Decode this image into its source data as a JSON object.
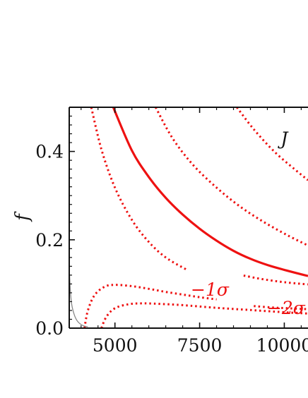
{
  "chart_data": {
    "type": "line",
    "xlabel": "",
    "ylabel": "f",
    "xlim": [
      3650,
      10700
    ],
    "ylim": [
      0,
      0.5
    ],
    "x_ticks": [
      5000,
      7500,
      10000
    ],
    "x_tick_labels": [
      "5000",
      "7500",
      "10000"
    ],
    "y_ticks": [
      0.0,
      0.2,
      0.4
    ],
    "y_tick_labels": [
      "0.0",
      "0.2",
      "0.4"
    ],
    "grid": false,
    "colors": {
      "contour": "#ee1111",
      "boundary": "#888888",
      "axis": "#111111"
    },
    "series": [
      {
        "style": "solid",
        "x": [
          4950,
          5500,
          6000,
          6500,
          7000,
          7500,
          8000,
          8500,
          9000,
          9500,
          10000,
          10700
        ],
        "y": [
          0.5,
          0.402,
          0.342,
          0.295,
          0.257,
          0.225,
          0.198,
          0.175,
          0.157,
          0.143,
          0.132,
          0.118
        ]
      },
      {
        "style": "dotted",
        "x": [
          4300,
          4600,
          5000,
          5500,
          6000,
          6500,
          7100
        ],
        "y": [
          0.5,
          0.405,
          0.318,
          0.245,
          0.195,
          0.16,
          0.133
        ]
      },
      {
        "style": "dotted",
        "x": [
          8800,
          9200,
          9600,
          10000,
          10400,
          10700
        ],
        "y": [
          0.119,
          0.113,
          0.108,
          0.104,
          0.101,
          0.099
        ]
      },
      {
        "style": "dotted",
        "x": [
          4100,
          4200,
          4400,
          4700,
          5000,
          5500,
          6000,
          6500,
          7000,
          7500,
          8000
        ],
        "y": [
          0.0,
          0.04,
          0.075,
          0.094,
          0.098,
          0.095,
          0.089,
          0.082,
          0.076,
          0.07,
          0.065
        ]
      },
      {
        "style": "dotted",
        "x": [
          9100,
          9600,
          10100,
          10700
        ],
        "y": [
          0.05,
          0.047,
          0.045,
          0.043
        ]
      },
      {
        "style": "dotted",
        "x": [
          4600,
          4750,
          5000,
          5400,
          5800,
          6300,
          7000,
          8000,
          9000,
          10000,
          10700
        ],
        "y": [
          0.0,
          0.026,
          0.045,
          0.054,
          0.056,
          0.055,
          0.052,
          0.046,
          0.041,
          0.036,
          0.033
        ]
      },
      {
        "style": "dotted",
        "x": [
          6200,
          6700,
          7300,
          8000,
          8700,
          9400,
          10100,
          10700
        ],
        "y": [
          0.5,
          0.43,
          0.37,
          0.318,
          0.275,
          0.24,
          0.21,
          0.187
        ]
      },
      {
        "style": "dotted",
        "x": [
          8600,
          9100,
          9700,
          10300,
          10700
        ],
        "y": [
          0.5,
          0.45,
          0.4,
          0.36,
          0.335
        ]
      },
      {
        "style": "thin",
        "x": [
          3650,
          3680,
          3720,
          3800,
          3900,
          4050,
          4200
        ],
        "y": [
          0.14,
          0.09,
          0.055,
          0.03,
          0.015,
          0.006,
          0.003
        ]
      }
    ],
    "annotations": [
      {
        "text": "J",
        "x": 10000,
        "y": 0.43,
        "color": "#111111"
      },
      {
        "text": "−1σ",
        "x": 7800,
        "y": 0.088,
        "color": "#ee1111"
      },
      {
        "text": "−2σ",
        "x": 10050,
        "y": 0.046,
        "color": "#ee1111"
      }
    ]
  }
}
